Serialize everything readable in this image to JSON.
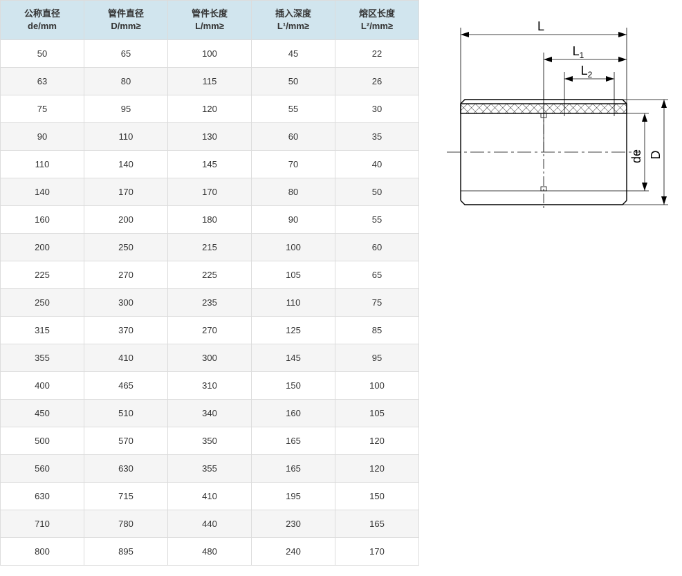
{
  "table": {
    "columns": [
      {
        "l1": "公称直径",
        "l2": "de/mm"
      },
      {
        "l1": "管件直径",
        "l2": "D/mm≥"
      },
      {
        "l1": "管件长度",
        "l2": "L/mm≥"
      },
      {
        "l1": "插入深度",
        "l2": "L¹/mm≥"
      },
      {
        "l1": "熔区长度",
        "l2": "L²/mm≥"
      }
    ],
    "rows": [
      [
        "50",
        "65",
        "100",
        "45",
        "22"
      ],
      [
        "63",
        "80",
        "115",
        "50",
        "26"
      ],
      [
        "75",
        "95",
        "120",
        "55",
        "30"
      ],
      [
        "90",
        "110",
        "130",
        "60",
        "35"
      ],
      [
        "110",
        "140",
        "145",
        "70",
        "40"
      ],
      [
        "140",
        "170",
        "170",
        "80",
        "50"
      ],
      [
        "160",
        "200",
        "180",
        "90",
        "55"
      ],
      [
        "200",
        "250",
        "215",
        "100",
        "60"
      ],
      [
        "225",
        "270",
        "225",
        "105",
        "65"
      ],
      [
        "250",
        "300",
        "235",
        "110",
        "75"
      ],
      [
        "315",
        "370",
        "270",
        "125",
        "85"
      ],
      [
        "355",
        "410",
        "300",
        "145",
        "95"
      ],
      [
        "400",
        "465",
        "310",
        "150",
        "100"
      ],
      [
        "450",
        "510",
        "340",
        "160",
        "105"
      ],
      [
        "500",
        "570",
        "350",
        "165",
        "120"
      ],
      [
        "560",
        "630",
        "355",
        "165",
        "120"
      ],
      [
        "630",
        "715",
        "410",
        "195",
        "150"
      ],
      [
        "710",
        "780",
        "440",
        "230",
        "165"
      ],
      [
        "800",
        "895",
        "480",
        "240",
        "170"
      ]
    ],
    "header_bg": "#d1e5ee",
    "row_alt_bg": "#f5f5f5",
    "border_color": "#dcdcdc"
  },
  "diagram": {
    "labels": {
      "L": "L",
      "L1": "L",
      "L1sub": "1",
      "L2": "L",
      "L2sub": "2",
      "de": "de",
      "D": "D"
    }
  }
}
